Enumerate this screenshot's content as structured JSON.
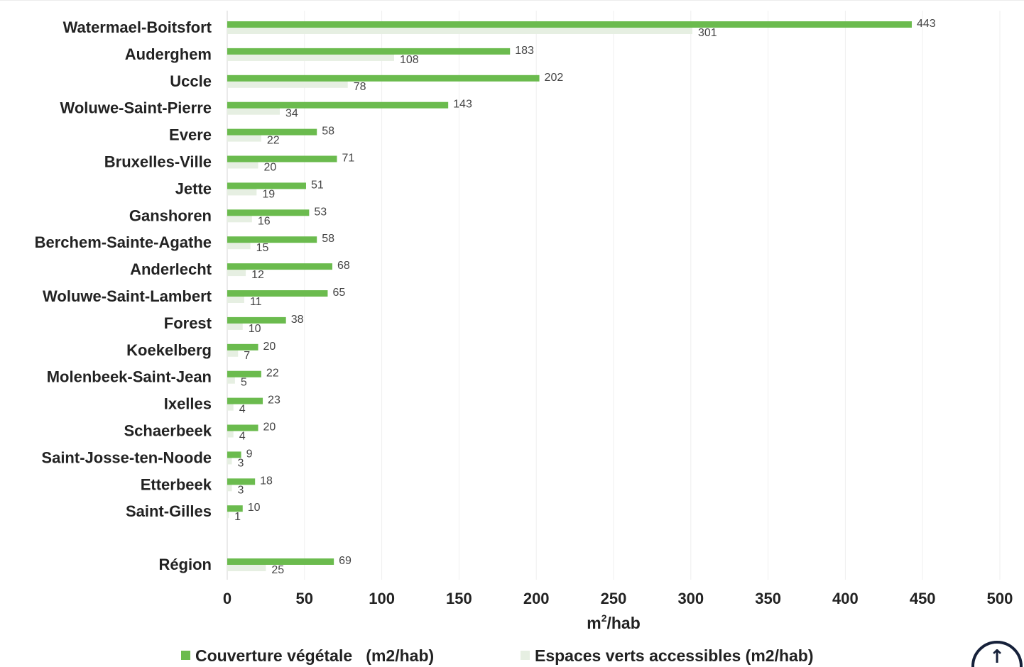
{
  "chart_data": {
    "type": "bar",
    "orientation": "horizontal",
    "xlabel_base": "m",
    "xlabel_sup": "2",
    "xlabel_rest": "/hab",
    "xlim": [
      0,
      500
    ],
    "xticks": [
      "0",
      "50",
      "100",
      "150",
      "200",
      "250",
      "300",
      "350",
      "400",
      "450",
      "500"
    ],
    "grid": "vertical",
    "legend_position": "bottom",
    "categories": [
      "Watermael-Boitsfort",
      "Auderghem",
      "Uccle",
      "Woluwe-Saint-Pierre",
      "Evere",
      "Bruxelles-Ville",
      "Jette",
      "Ganshoren",
      "Berchem-Sainte-Agathe",
      "Anderlecht",
      "Woluwe-Saint-Lambert",
      "Forest",
      "Koekelberg",
      "Molenbeek-Saint-Jean",
      "Ixelles",
      "Schaerbeek",
      "Saint-Josse-ten-Noode",
      "Etterbeek",
      "Saint-Gilles",
      "Région"
    ],
    "series": [
      {
        "name": "Couverture végétale   (m2/hab)",
        "color": "#6bbb4e",
        "values": [
          443,
          183,
          202,
          143,
          58,
          71,
          51,
          53,
          58,
          68,
          65,
          38,
          20,
          22,
          23,
          20,
          9,
          18,
          10,
          69
        ]
      },
      {
        "name": "Espaces verts accessibles (m2/hab)",
        "color": "#e6efe2",
        "values": [
          301,
          108,
          78,
          34,
          22,
          20,
          19,
          16,
          15,
          12,
          11,
          10,
          7,
          5,
          4,
          4,
          3,
          3,
          1,
          25
        ]
      }
    ]
  },
  "ui": {
    "scroll_top_icon": "arrow-up-icon",
    "scroll_top_glyph": "↑"
  }
}
